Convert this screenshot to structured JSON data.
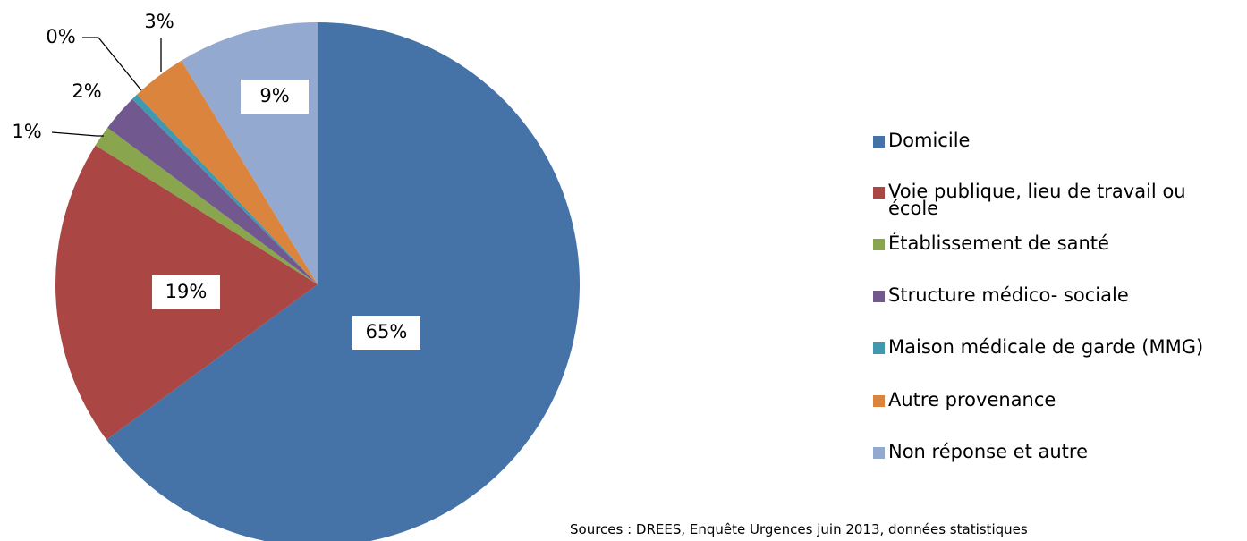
{
  "chart_data": {
    "type": "pie",
    "categories": [
      "Domicile",
      "Voie publique, lieu de travail ou école",
      "Établissement de santé",
      "Structure médico- sociale",
      "Maison médicale de garde (MMG)",
      "Autre provenance",
      "Non réponse et autre"
    ],
    "values": [
      64.9,
      19.0,
      1.3,
      2.3,
      0.4,
      3.4,
      8.7
    ],
    "value_labels": [
      "65%",
      "19%",
      "1%",
      "2%",
      "0%",
      "3%",
      "9%"
    ],
    "colors": [
      "#4572a7",
      "#aa4643",
      "#89a54e",
      "#71588f",
      "#4198af",
      "#db843d",
      "#93a9cf"
    ],
    "legend": "right",
    "source": "Sources : DREES, Enquête Urgences  juin 2013, données statistiques"
  }
}
